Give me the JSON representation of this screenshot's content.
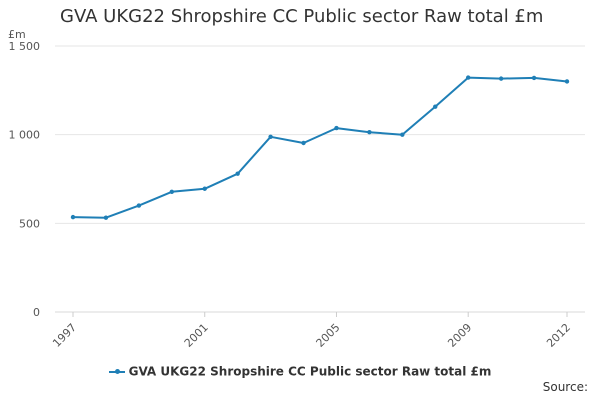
{
  "chart_data": {
    "type": "line",
    "title": "GVA UKG22 Shropshire CC Public sector Raw total £m",
    "unit_label": "£m",
    "x": [
      1997,
      1998,
      1999,
      2000,
      2001,
      2002,
      2003,
      2004,
      2005,
      2006,
      2007,
      2008,
      2009,
      2010,
      2011,
      2012
    ],
    "series": [
      {
        "name": "GVA UKG22 Shropshire CC Public sector Raw total £m",
        "values": [
          535,
          532,
          600,
          678,
          695,
          780,
          988,
          953,
          1037,
          1014,
          1000,
          1158,
          1322,
          1316,
          1320,
          1300
        ],
        "color": "#1f7fb6"
      }
    ],
    "ylim": [
      0,
      1500
    ],
    "yticks": [
      0,
      500,
      1000,
      1500
    ],
    "ytick_labels": [
      "0",
      "500",
      "1 000",
      "1 500"
    ],
    "xtick_labels": [
      "1997",
      "2001",
      "2005",
      "2009",
      "2012"
    ],
    "grid": true,
    "legend": "bottom-center",
    "source_label": "Source:"
  }
}
